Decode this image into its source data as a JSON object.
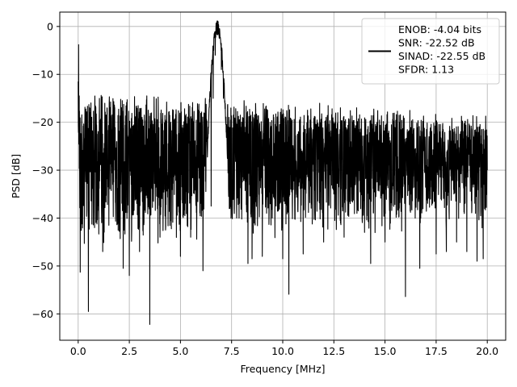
{
  "chart_data": {
    "type": "line",
    "title": "",
    "xlabel": "Frequency [MHz]",
    "ylabel": "PSD [dB]",
    "xlim": [
      -0.9,
      20.9
    ],
    "ylim": [
      -65.5,
      3.0
    ],
    "xticks": [
      0.0,
      2.5,
      5.0,
      7.5,
      10.0,
      12.5,
      15.0,
      17.5,
      20.0
    ],
    "xtick_labels": [
      "0.0",
      "2.5",
      "5.0",
      "7.5",
      "10.0",
      "12.5",
      "15.0",
      "17.5",
      "20.0"
    ],
    "yticks": [
      0,
      -10,
      -20,
      -30,
      -40,
      -50,
      -60
    ],
    "ytick_labels": [
      "0",
      "−10",
      "−20",
      "−30",
      "−40",
      "−50",
      "−60"
    ],
    "grid": true,
    "legend_position": "upper-right",
    "series": [
      {
        "name": "ENOB: -4.04 bits\nSNR: -22.52 dB\nSINAD: -22.55 dB\nSFDR: 1.13",
        "color": "#000000",
        "points": [
          [
            0.0,
            -11.5
          ],
          [
            0.02,
            -3.8
          ],
          [
            0.05,
            -14.5
          ],
          [
            0.1,
            -51.3
          ],
          [
            0.2,
            -40.0
          ],
          [
            0.3,
            -45.3
          ],
          [
            0.5,
            -59.5
          ],
          [
            0.8,
            -42.0
          ],
          [
            1.2,
            -47.0
          ],
          [
            1.5,
            -41.5
          ],
          [
            2.2,
            -50.5
          ],
          [
            2.5,
            -52.0
          ],
          [
            3.0,
            -47.0
          ],
          [
            3.5,
            -62.2
          ],
          [
            4.0,
            -44.0
          ],
          [
            5.0,
            -48.0
          ],
          [
            5.5,
            -44.0
          ],
          [
            6.1,
            -51.0
          ],
          [
            6.5,
            -37.5
          ],
          [
            6.6,
            -15.0
          ],
          [
            6.7,
            -6.0
          ],
          [
            6.8,
            -0.2
          ],
          [
            6.9,
            -2.0
          ],
          [
            7.0,
            -9.0
          ],
          [
            7.1,
            -15.0
          ],
          [
            7.5,
            -37.0
          ],
          [
            8.3,
            -49.5
          ],
          [
            8.5,
            -48.5
          ],
          [
            9.0,
            -48.0
          ],
          [
            10.0,
            -48.5
          ],
          [
            10.3,
            -55.9
          ],
          [
            11.0,
            -47.5
          ],
          [
            12.0,
            -45.0
          ],
          [
            13.0,
            -44.0
          ],
          [
            14.0,
            -43.0
          ],
          [
            14.3,
            -49.5
          ],
          [
            15.0,
            -45.0
          ],
          [
            16.0,
            -56.4
          ],
          [
            16.7,
            -50.5
          ],
          [
            17.5,
            -47.5
          ],
          [
            18.0,
            -47.0
          ],
          [
            18.5,
            -45.0
          ],
          [
            19.0,
            -47.0
          ],
          [
            19.5,
            -49.0
          ],
          [
            19.8,
            -48.5
          ],
          [
            20.0,
            -30.0
          ]
        ],
        "noise_floor_upper_db": [
          -15,
          -20
        ],
        "noise_floor_lower_db": [
          -44,
          -40
        ]
      }
    ]
  }
}
